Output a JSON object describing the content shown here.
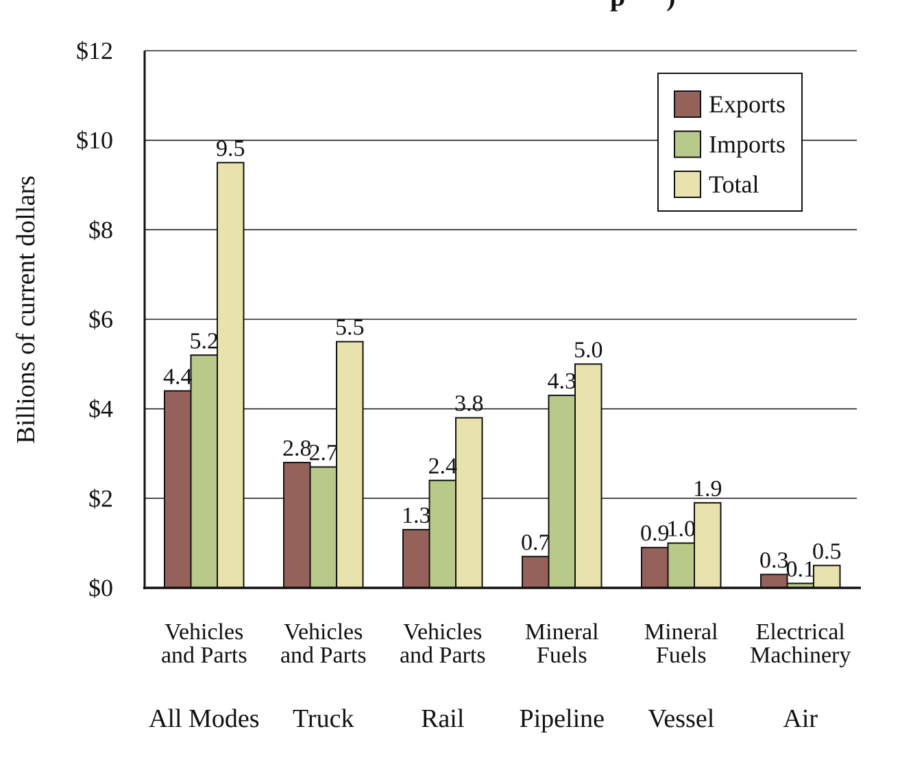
{
  "chart_data": {
    "type": "bar",
    "title": "",
    "title_visible_fragment": "p      )",
    "ylabel": "Billions of current dollars",
    "xlabel": "",
    "ylim": [
      0,
      12
    ],
    "yticks": [
      {
        "value": 0,
        "label": "$0"
      },
      {
        "value": 2,
        "label": "$2"
      },
      {
        "value": 4,
        "label": "$4"
      },
      {
        "value": 6,
        "label": "$6"
      },
      {
        "value": 8,
        "label": "$8"
      },
      {
        "value": 10,
        "label": "$10"
      },
      {
        "value": 12,
        "label": "$12"
      }
    ],
    "grid": true,
    "legend_position": "top-right",
    "categories": [
      {
        "commodity": [
          "Vehicles",
          "and Parts"
        ],
        "mode": "All Modes"
      },
      {
        "commodity": [
          "Vehicles",
          "and Parts"
        ],
        "mode": "Truck"
      },
      {
        "commodity": [
          "Vehicles",
          "and Parts"
        ],
        "mode": "Rail"
      },
      {
        "commodity": [
          "Mineral",
          "Fuels"
        ],
        "mode": "Pipeline"
      },
      {
        "commodity": [
          "Mineral",
          "Fuels"
        ],
        "mode": "Vessel"
      },
      {
        "commodity": [
          "Electrical",
          "Machinery"
        ],
        "mode": "Air"
      }
    ],
    "series": [
      {
        "name": "Exports",
        "color": "#94625b",
        "values": [
          4.4,
          2.8,
          1.3,
          0.7,
          0.9,
          0.3
        ],
        "labels": [
          "4.4",
          "2.8",
          "1.3",
          "0.7",
          "0.9",
          "0.3"
        ]
      },
      {
        "name": "Imports",
        "color": "#b9c98a",
        "values": [
          5.2,
          2.7,
          2.4,
          4.3,
          1.0,
          0.1
        ],
        "labels": [
          "5.2",
          "2.7",
          "2.4",
          "4.3",
          "1.0",
          "0.1"
        ]
      },
      {
        "name": "Total",
        "color": "#e8e2ad",
        "values": [
          9.5,
          5.5,
          3.8,
          5.0,
          1.9,
          0.5
        ],
        "labels": [
          "9.5",
          "5.5",
          "3.8",
          "5.0",
          "1.9",
          "0.5"
        ]
      }
    ]
  }
}
